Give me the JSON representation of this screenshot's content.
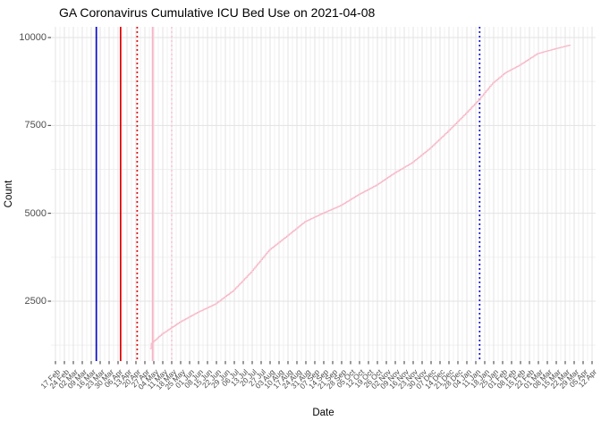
{
  "title": "GA Coronavirus Cumulative ICU Bed Use on 2021-04-08",
  "colors": {
    "background": "#ffffff",
    "grid_major": "#e3e3e3",
    "grid_minor": "#f0f0f0",
    "tick_mark": "#333333",
    "axis_text": "#4d4d4d",
    "curve": "#f8b8c8"
  },
  "chart_data": {
    "type": "line",
    "title": "GA Coronavirus Cumulative ICU Bed Use on 2021-04-08",
    "xlabel": "Date",
    "ylabel": "Count",
    "legend": "none",
    "grid": "major+minor",
    "y_ticks": [
      2500,
      5000,
      7500,
      10000
    ],
    "y_minor_ticks": [
      1250,
      3750,
      6250,
      8750
    ],
    "ylim": [
      800,
      10300
    ],
    "x_day0_label": "17 Feb",
    "x_tick_interval_days": 7,
    "x_tick_labels": [
      "17 Feb",
      "24 Feb",
      "02 Mar",
      "09 Mar",
      "16 Mar",
      "23 Mar",
      "30 Mar",
      "06 Apr",
      "13 Apr",
      "20 Apr",
      "27 Apr",
      "04 May",
      "11 May",
      "18 May",
      "25 May",
      "01 Jun",
      "08 Jun",
      "15 Jun",
      "22 Jun",
      "29 Jun",
      "06 Jul",
      "13 Jul",
      "20 Jul",
      "27 Jul",
      "03 Aug",
      "10 Aug",
      "17 Aug",
      "24 Aug",
      "31 Aug",
      "07 Sep",
      "14 Sep",
      "21 Sep",
      "28 Sep",
      "05 Oct",
      "12 Oct",
      "19 Oct",
      "26 Oct",
      "02 Nov",
      "09 Nov",
      "16 Nov",
      "23 Nov",
      "30 Nov",
      "07 Dec",
      "14 Dec",
      "21 Dec",
      "28 Dec",
      "04 Jan",
      "11 Jan",
      "18 Jan",
      "25 Jan",
      "01 Feb",
      "08 Feb",
      "15 Feb",
      "22 Feb",
      "01 Mar",
      "08 Mar",
      "15 Mar",
      "22 Mar",
      "29 Mar",
      "05 Apr",
      "12 Apr"
    ],
    "series": [
      {
        "name": "cumulative-icu-bed-use",
        "color": "#f8b8c8",
        "style": "step",
        "points_day_count": [
          [
            74,
            1150
          ],
          [
            75,
            1300
          ],
          [
            83,
            1560
          ],
          [
            97,
            1900
          ],
          [
            111,
            2180
          ],
          [
            125,
            2420
          ],
          [
            139,
            2800
          ],
          [
            153,
            3330
          ],
          [
            167,
            3950
          ],
          [
            181,
            4350
          ],
          [
            195,
            4760
          ],
          [
            209,
            5000
          ],
          [
            223,
            5220
          ],
          [
            237,
            5530
          ],
          [
            251,
            5800
          ],
          [
            265,
            6140
          ],
          [
            279,
            6440
          ],
          [
            293,
            6850
          ],
          [
            307,
            7330
          ],
          [
            321,
            7840
          ],
          [
            331,
            8220
          ],
          [
            342,
            8700
          ],
          [
            352,
            9000
          ],
          [
            363,
            9210
          ],
          [
            377,
            9540
          ],
          [
            391,
            9680
          ],
          [
            403,
            9790
          ]
        ]
      }
    ],
    "vlines": [
      {
        "name": "event-line-1",
        "day": 32,
        "color": "#0b0bd0",
        "style": "solid"
      },
      {
        "name": "event-line-2",
        "day": 51,
        "color": "#e10000",
        "style": "solid"
      },
      {
        "name": "event-line-3",
        "day": 64,
        "color": "#e10000",
        "style": "dotted"
      },
      {
        "name": "event-line-4",
        "day": 76,
        "color": "#ffb1c5",
        "style": "solid"
      },
      {
        "name": "event-line-5",
        "day": 91,
        "color": "#ffc4d2",
        "style": "dotted"
      },
      {
        "name": "event-line-6",
        "day": 332,
        "color": "#0b0bd0",
        "style": "dotted"
      }
    ]
  }
}
